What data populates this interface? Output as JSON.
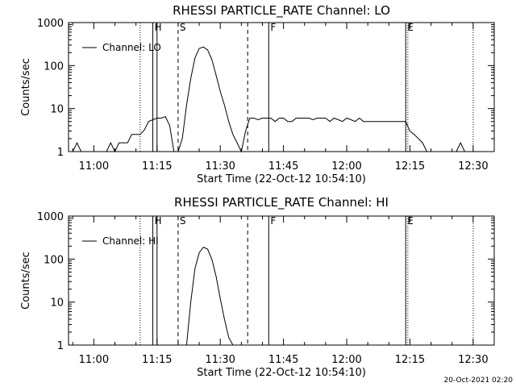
{
  "chart_data": [
    {
      "type": "line",
      "title": "RHESSI PARTICLE_RATE Channel: LO",
      "ylabel": "Counts/sec",
      "xlabel": "Start Time (22-Oct-12 10:54:10)",
      "yscale": "log",
      "ylim": [
        1,
        1000
      ],
      "xlim": [
        "10:54",
        "12:35"
      ],
      "xticks": [
        "11:00",
        "11:15",
        "11:30",
        "11:45",
        "12:00",
        "12:15",
        "12:30"
      ],
      "yticks": [
        "1",
        "10",
        "100",
        "1000"
      ],
      "legend": {
        "label": "Channel: LO",
        "placement": "top-left"
      },
      "markers": [
        {
          "label": "",
          "style": "dotted",
          "x": "11:11"
        },
        {
          "label": "H",
          "style": "solid",
          "x": "11:14"
        },
        {
          "label": "",
          "style": "solid",
          "x": "11:15"
        },
        {
          "label": "S",
          "style": "dashed",
          "x": "11:20"
        },
        {
          "label": "",
          "style": "dashed",
          "x": "11:36.5"
        },
        {
          "label": "F",
          "style": "solid",
          "x": "11:41.5"
        },
        {
          "label": "E",
          "style": "solid",
          "x": "12:14"
        },
        {
          "label": "",
          "style": "dotted",
          "x": "12:14.5"
        },
        {
          "label": "",
          "style": "dotted",
          "x": "12:30"
        }
      ],
      "series": [
        {
          "name": "",
          "x": [
            "10:54",
            "10:55",
            "10:56",
            "10:57",
            "10:58",
            "10:59",
            "11:00",
            "11:01",
            "11:02",
            "11:03",
            "11:04",
            "11:05",
            "11:06",
            "11:07",
            "11:08",
            "11:09",
            "11:10",
            "11:11",
            "11:12",
            "11:13",
            "11:14",
            "11:15",
            "11:16",
            "11:17",
            "11:18",
            "11:19",
            "11:20",
            "11:21",
            "11:22",
            "11:23",
            "11:24",
            "11:25",
            "11:26",
            "11:27",
            "11:28",
            "11:29",
            "11:30",
            "11:31",
            "11:32",
            "11:33",
            "11:34",
            "11:35",
            "11:36",
            "11:37",
            "11:38",
            "11:39",
            "11:40",
            "11:41",
            "11:42",
            "11:43",
            "11:44",
            "11:45",
            "11:46",
            "11:47",
            "11:48",
            "11:49",
            "11:50",
            "11:51",
            "11:52",
            "11:53",
            "11:54",
            "11:55",
            "11:56",
            "11:57",
            "11:58",
            "11:59",
            "12:00",
            "12:01",
            "12:02",
            "12:03",
            "12:04",
            "12:05",
            "12:06",
            "12:07",
            "12:08",
            "12:09",
            "12:10",
            "12:11",
            "12:12",
            "12:13",
            "12:14",
            "12:15",
            "12:16",
            "12:17",
            "12:18",
            "12:19",
            "12:20",
            "12:21",
            "12:22",
            "12:23",
            "12:24",
            "12:25",
            "12:26",
            "12:27",
            "12:28",
            "12:29",
            "12:30"
          ],
          "y": [
            1,
            1,
            1.6,
            1,
            1,
            1,
            1,
            1,
            1,
            1,
            1.6,
            1,
            1.6,
            1.6,
            1.6,
            2.5,
            2.5,
            2.5,
            3.2,
            5,
            5.5,
            6,
            6,
            6.5,
            4,
            1,
            1,
            2,
            12,
            50,
            150,
            250,
            270,
            230,
            140,
            60,
            25,
            12,
            5,
            2.5,
            1.6,
            1,
            3,
            6,
            6,
            5.5,
            6,
            6,
            6,
            5,
            6,
            6,
            5,
            5,
            6,
            6,
            6,
            6,
            5.5,
            6,
            6,
            6,
            5,
            6,
            5.5,
            5,
            6,
            5.5,
            5,
            6,
            5,
            5,
            5,
            5,
            5,
            5,
            5,
            5,
            5,
            5,
            5,
            3,
            2.5,
            2,
            1.6,
            1,
            1,
            1,
            1,
            1,
            1,
            1,
            1,
            1.6,
            1,
            1,
            1
          ]
        }
      ]
    },
    {
      "type": "line",
      "title": "RHESSI PARTICLE_RATE Channel: HI",
      "ylabel": "Counts/sec",
      "xlabel": "Start Time (22-Oct-12 10:54:10)",
      "yscale": "log",
      "ylim": [
        1,
        1000
      ],
      "xlim": [
        "10:54",
        "12:35"
      ],
      "xticks": [
        "11:00",
        "11:15",
        "11:30",
        "11:45",
        "12:00",
        "12:15",
        "12:30"
      ],
      "yticks": [
        "1",
        "10",
        "100",
        "1000"
      ],
      "legend": {
        "label": "Channel: HI",
        "placement": "top-left"
      },
      "markers": [
        {
          "label": "",
          "style": "dotted",
          "x": "11:11"
        },
        {
          "label": "H",
          "style": "solid",
          "x": "11:14"
        },
        {
          "label": "",
          "style": "solid",
          "x": "11:15"
        },
        {
          "label": "S",
          "style": "dashed",
          "x": "11:20"
        },
        {
          "label": "",
          "style": "dashed",
          "x": "11:36.5"
        },
        {
          "label": "F",
          "style": "solid",
          "x": "11:41.5"
        },
        {
          "label": "E",
          "style": "solid",
          "x": "12:14"
        },
        {
          "label": "",
          "style": "dotted",
          "x": "12:14.5"
        },
        {
          "label": "",
          "style": "dotted",
          "x": "12:30"
        }
      ],
      "series": [
        {
          "name": "",
          "x": [
            "11:22",
            "11:23",
            "11:24",
            "11:25",
            "11:26",
            "11:27",
            "11:28",
            "11:29",
            "11:30",
            "11:31",
            "11:32",
            "11:33"
          ],
          "y": [
            1,
            10,
            60,
            140,
            190,
            170,
            100,
            40,
            12,
            4,
            1.5,
            1
          ]
        }
      ]
    }
  ],
  "footer": {
    "timestamp": "20-Oct-2021 02:20"
  }
}
